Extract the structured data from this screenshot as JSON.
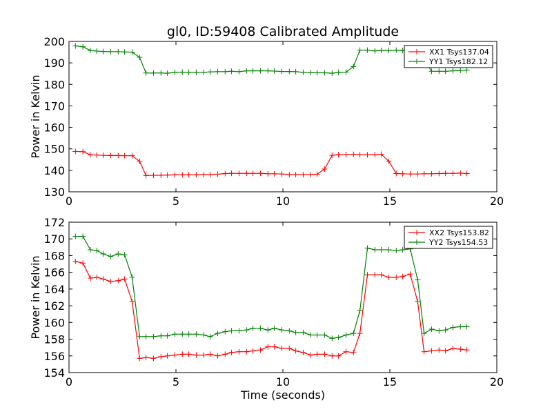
{
  "figure": {
    "title": "gl0, ID:59408 Calibrated Amplitude",
    "xlabel": "Time (seconds)"
  },
  "chart_data": [
    {
      "type": "line",
      "title": "gl0, ID:59408 Calibrated Amplitude",
      "xlabel": "",
      "ylabel": "Power in Kelvin",
      "xlim": [
        0,
        20
      ],
      "ylim": [
        130,
        200
      ],
      "xticks": [
        0,
        5,
        10,
        15,
        20
      ],
      "yticks": [
        130,
        140,
        150,
        160,
        170,
        180,
        190,
        200
      ],
      "legend_position": "top-right",
      "x": [
        0.3,
        0.65,
        1.0,
        1.3,
        1.6,
        1.95,
        2.3,
        2.6,
        2.95,
        3.3,
        3.6,
        3.95,
        4.3,
        4.6,
        4.95,
        5.3,
        5.6,
        5.95,
        6.3,
        6.6,
        6.95,
        7.3,
        7.6,
        7.95,
        8.3,
        8.6,
        8.95,
        9.3,
        9.6,
        9.95,
        10.3,
        10.6,
        10.95,
        11.3,
        11.6,
        11.95,
        12.3,
        12.6,
        12.95,
        13.3,
        13.6,
        13.95,
        14.3,
        14.6,
        14.95,
        15.3,
        15.6,
        15.95,
        16.3,
        16.6,
        16.95,
        17.3,
        17.6,
        17.95,
        18.3,
        18.6
      ],
      "series": [
        {
          "name": "XX1 Tsys137.04",
          "color": "#ff0000",
          "values": [
            148.8,
            148.7,
            147.2,
            147.1,
            147.0,
            146.9,
            146.9,
            146.8,
            146.8,
            144.2,
            137.6,
            137.7,
            137.7,
            137.8,
            137.9,
            137.9,
            137.9,
            137.9,
            138.0,
            138.0,
            138.2,
            138.5,
            138.6,
            138.6,
            138.6,
            138.6,
            138.6,
            138.4,
            138.4,
            138.3,
            138.0,
            138.0,
            138.0,
            138.0,
            138.2,
            140.6,
            147.0,
            147.3,
            147.3,
            147.4,
            147.2,
            147.2,
            147.3,
            147.5,
            144.2,
            138.5,
            138.4,
            138.3,
            138.3,
            138.4,
            138.4,
            138.5,
            138.6,
            138.6,
            138.7,
            138.5
          ]
        },
        {
          "name": "YY1 Tsys182.12",
          "color": "#008000",
          "values": [
            197.9,
            197.5,
            195.8,
            195.5,
            195.3,
            195.2,
            195.2,
            195.1,
            195.0,
            192.6,
            185.3,
            185.3,
            185.3,
            185.2,
            185.6,
            185.7,
            185.6,
            185.6,
            185.6,
            185.8,
            185.9,
            185.9,
            186.1,
            185.9,
            186.3,
            186.3,
            186.3,
            186.3,
            186.2,
            186.0,
            186.0,
            185.9,
            185.6,
            185.5,
            185.4,
            185.4,
            185.2,
            185.6,
            185.7,
            188.3,
            195.9,
            195.9,
            195.6,
            195.8,
            195.8,
            195.9,
            195.7,
            195.9,
            196.0,
            191.8,
            186.1,
            186.1,
            186.1,
            186.3,
            186.5,
            186.6
          ]
        }
      ]
    },
    {
      "type": "line",
      "title": "",
      "xlabel": "Time (seconds)",
      "ylabel": "Power in Kelvin",
      "xlim": [
        0,
        20
      ],
      "ylim": [
        154,
        172
      ],
      "xticks": [
        0,
        5,
        10,
        15,
        20
      ],
      "yticks": [
        154,
        156,
        158,
        160,
        162,
        164,
        166,
        168,
        170,
        172
      ],
      "legend_position": "top-right",
      "x": [
        0.3,
        0.65,
        1.0,
        1.3,
        1.6,
        1.95,
        2.3,
        2.6,
        2.95,
        3.3,
        3.6,
        3.95,
        4.3,
        4.6,
        4.95,
        5.3,
        5.6,
        5.95,
        6.3,
        6.6,
        6.95,
        7.3,
        7.6,
        7.95,
        8.3,
        8.6,
        8.95,
        9.3,
        9.6,
        9.95,
        10.3,
        10.6,
        10.95,
        11.3,
        11.6,
        11.95,
        12.3,
        12.6,
        12.95,
        13.3,
        13.6,
        13.95,
        14.3,
        14.6,
        14.95,
        15.3,
        15.6,
        15.95,
        16.3,
        16.6,
        16.95,
        17.3,
        17.6,
        17.95,
        18.3,
        18.6
      ],
      "series": [
        {
          "name": "XX2 Tsys153.82",
          "color": "#ff0000",
          "values": [
            167.3,
            167.1,
            165.3,
            165.4,
            165.2,
            164.9,
            165.0,
            165.2,
            162.5,
            155.7,
            155.8,
            155.7,
            155.9,
            156.0,
            156.1,
            156.2,
            156.2,
            156.1,
            156.1,
            156.2,
            156.0,
            156.2,
            156.4,
            156.5,
            156.5,
            156.6,
            156.7,
            157.1,
            157.1,
            156.9,
            156.9,
            156.6,
            156.4,
            156.1,
            156.2,
            156.2,
            156.0,
            156.0,
            156.5,
            156.4,
            158.7,
            165.7,
            165.7,
            165.7,
            165.4,
            165.4,
            165.5,
            165.8,
            162.5,
            156.5,
            156.6,
            156.7,
            156.6,
            156.9,
            156.8,
            156.7
          ]
        },
        {
          "name": "YY2 Tsys154.53",
          "color": "#008000",
          "values": [
            170.3,
            170.3,
            168.7,
            168.6,
            168.2,
            167.9,
            168.2,
            168.1,
            165.4,
            158.3,
            158.3,
            158.3,
            158.4,
            158.4,
            158.6,
            158.6,
            158.6,
            158.6,
            158.5,
            158.3,
            158.7,
            158.9,
            159.0,
            159.0,
            159.1,
            159.3,
            159.3,
            159.1,
            159.3,
            159.1,
            159.0,
            158.8,
            158.8,
            158.5,
            158.5,
            158.5,
            158.1,
            158.2,
            158.5,
            158.7,
            161.4,
            168.9,
            168.7,
            168.7,
            168.7,
            168.6,
            168.7,
            168.8,
            165.1,
            158.7,
            159.2,
            159.0,
            159.1,
            159.4,
            159.5,
            159.5
          ]
        }
      ]
    }
  ]
}
